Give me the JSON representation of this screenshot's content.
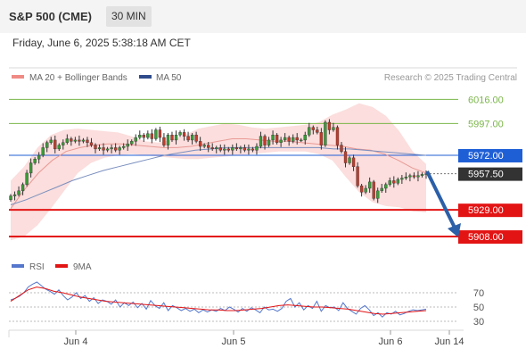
{
  "header": {
    "title": "S&P 500 (CME)",
    "interval": "30 MIN"
  },
  "datetime": "Friday, June 6, 2025 5:38:18 AM CET",
  "legend": {
    "bollinger": {
      "label": "MA 20 + Bollinger Bands",
      "color": "#f08a84"
    },
    "ma50": {
      "label": "MA 50",
      "color": "#2f4b8c"
    },
    "credit": "Research © 2025 Trading Central"
  },
  "chart_data": {
    "type": "candlestick",
    "x_ticks": [
      "Jun 4",
      "Jun 5",
      "Jun 6",
      "Jun 14"
    ],
    "ylim": [
      5901,
      6024
    ],
    "levels": [
      {
        "label": "6016.00",
        "value": 6016,
        "kind": "resistance",
        "color": "#7ab648"
      },
      {
        "label": "5997.00",
        "value": 5997,
        "kind": "resistance",
        "color": "#7ab648"
      },
      {
        "label": "5972.00",
        "value": 5972,
        "kind": "pivot",
        "color": "#1f5fd6"
      },
      {
        "label": "5957.50",
        "value": 5957.5,
        "kind": "last",
        "color": "#333333"
      },
      {
        "label": "5929.00",
        "value": 5929,
        "kind": "support",
        "color": "#e31414"
      },
      {
        "label": "5908.00",
        "value": 5908,
        "kind": "support",
        "color": "#e31414"
      }
    ],
    "close": [
      5940,
      5941,
      5944,
      5949,
      5958,
      5966,
      5969,
      5972,
      5978,
      5982,
      5984,
      5977,
      5980,
      5982,
      5985,
      5983,
      5984,
      5983,
      5984,
      5982,
      5980,
      5977,
      5978,
      5976,
      5977,
      5978,
      5976,
      5978,
      5979,
      5981,
      5983,
      5986,
      5988,
      5986,
      5989,
      5985,
      5992,
      5986,
      5980,
      5988,
      5984,
      5988,
      5990,
      5987,
      5984,
      5988,
      5983,
      5979,
      5980,
      5978,
      5977,
      5978,
      5976,
      5977,
      5976,
      5978,
      5977,
      5978,
      5976,
      5977,
      5976,
      5979,
      5987,
      5980,
      5984,
      5988,
      5982,
      5984,
      5986,
      5983,
      5986,
      5984,
      5984,
      5988,
      5994,
      5992,
      5990,
      5980,
      5998,
      5992,
      5994,
      5980,
      5975,
      5966,
      5970,
      5963,
      5948,
      5943,
      5946,
      5951,
      5938,
      5944,
      5946,
      5949,
      5952,
      5950,
      5953,
      5954,
      5955,
      5956,
      5955,
      5956,
      5957,
      5957.5
    ],
    "ma20_upper": [
      5952,
      5963,
      5978,
      5988,
      5992,
      5993,
      5992,
      5991,
      5990,
      5987,
      5983,
      5982,
      5984,
      5988,
      5993,
      5995,
      5997,
      5996,
      5994,
      5993,
      5994,
      5995,
      5996,
      5998,
      6004,
      6008,
      6013,
      6010,
      6003,
      5991,
      5975,
      5965
    ],
    "ma20_lower": [
      5905,
      5908,
      5917,
      5930,
      5944,
      5958,
      5966,
      5970,
      5972,
      5973,
      5972,
      5971,
      5970,
      5969,
      5969,
      5970,
      5971,
      5972,
      5973,
      5974,
      5975,
      5975,
      5975,
      5973,
      5968,
      5955,
      5943,
      5935,
      5932,
      5931,
      5928,
      5927
    ],
    "ma20": [
      5930,
      5945,
      5958,
      5968,
      5975,
      5978,
      5980,
      5981,
      5981,
      5980,
      5979,
      5978,
      5978,
      5979,
      5981,
      5983,
      5985,
      5985,
      5984,
      5983,
      5983,
      5982,
      5981,
      5980,
      5979,
      5977,
      5976,
      5973,
      5968,
      5962,
      5958
    ],
    "ma50": [
      5933,
      5937,
      5942,
      5947,
      5952,
      5956,
      5960,
      5963,
      5966,
      5969,
      5972,
      5974,
      5976,
      5977,
      5978,
      5978,
      5978,
      5978,
      5978,
      5978,
      5978,
      5977,
      5977,
      5976,
      5975,
      5974,
      5973,
      5972
    ],
    "rsi": {
      "legend": [
        {
          "label": "RSI",
          "color": "#5577cc"
        },
        {
          "label": "9MA",
          "color": "#e31414"
        }
      ],
      "ticks": [
        "70",
        "50",
        "30"
      ],
      "ylim": [
        20,
        90
      ],
      "rsi_values": [
        60,
        62,
        65,
        70,
        78,
        82,
        85,
        80,
        75,
        72,
        68,
        74,
        66,
        60,
        64,
        70,
        62,
        66,
        58,
        63,
        55,
        60,
        58,
        54,
        60,
        50,
        56,
        52,
        57,
        49,
        55,
        47,
        59,
        52,
        48,
        56,
        45,
        52,
        49,
        45,
        48,
        44,
        47,
        42,
        46,
        43,
        46,
        44,
        48,
        45,
        50,
        47,
        43,
        48,
        44,
        49,
        46,
        42,
        50,
        46,
        47,
        44,
        48,
        58,
        62,
        50,
        56,
        46,
        52,
        48,
        58,
        44,
        52,
        49,
        50,
        45,
        56,
        48,
        44,
        40,
        48,
        52,
        46,
        38,
        42,
        36,
        42,
        40,
        44,
        39,
        41,
        44,
        46,
        45,
        46,
        47
      ],
      "ma_values": [
        58,
        66,
        74,
        78,
        76,
        72,
        70,
        67,
        64,
        62,
        60,
        58,
        57,
        56,
        55,
        54,
        53,
        52,
        51,
        50,
        49,
        48,
        47,
        46,
        46,
        45,
        45,
        46,
        47,
        48,
        50,
        52,
        53,
        52,
        51,
        50,
        50,
        49,
        48,
        47,
        45,
        43,
        41,
        40,
        41,
        42,
        43,
        44,
        45
      ]
    }
  }
}
